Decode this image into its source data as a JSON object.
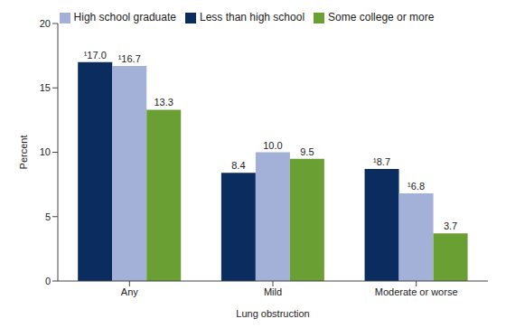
{
  "chart_data": {
    "type": "bar",
    "x_label": "Lung obstruction",
    "y_label": "Percent",
    "categories": [
      "Any",
      "Mild",
      "Moderate or worse"
    ],
    "series": [
      {
        "name": "Less than high school",
        "color": "#0b2c5e",
        "values": [
          17.0,
          8.4,
          8.7
        ],
        "value_labels": [
          "¹17.0",
          "8.4",
          "¹8.7"
        ]
      },
      {
        "name": "High school graduate",
        "color": "#a3b0d8",
        "values": [
          16.7,
          10.0,
          6.8
        ],
        "value_labels": [
          "¹16.7",
          "10.0",
          "¹6.8"
        ]
      },
      {
        "name": "Some college or more",
        "color": "#6a9f34",
        "values": [
          13.3,
          9.5,
          3.7
        ],
        "value_labels": [
          "13.3",
          "9.5",
          "3.7"
        ]
      }
    ],
    "ylim": [
      0,
      20
    ],
    "yticks": [
      0,
      5,
      10,
      15,
      20
    ],
    "grid": false,
    "legend": "top",
    "data_labels": true
  }
}
